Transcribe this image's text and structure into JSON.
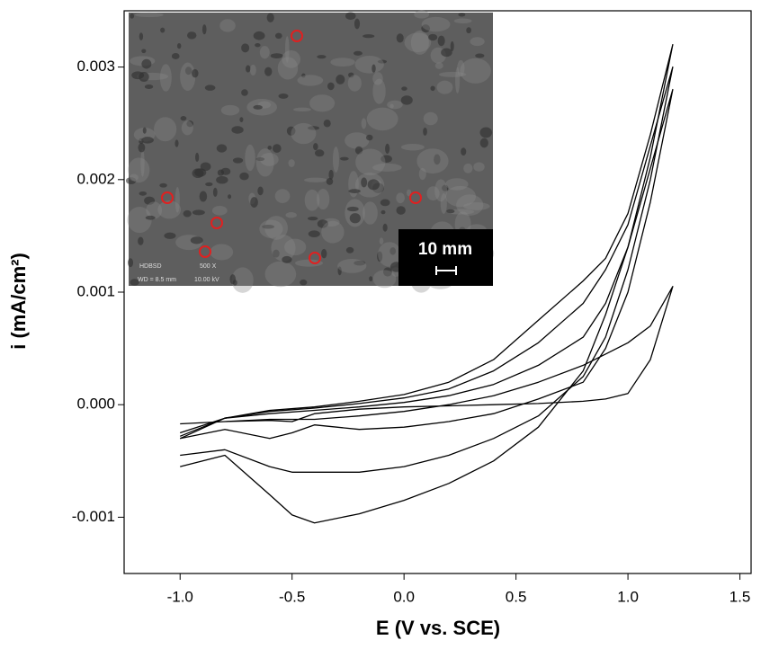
{
  "chart_data": {
    "type": "line",
    "x_label": "E (V vs. SCE)",
    "y_label": "i (mA/cm²)",
    "xlim": [
      -1.25,
      1.55
    ],
    "ylim": [
      -0.0015,
      0.0035
    ],
    "xticks": [
      {
        "value": -1,
        "label": "-1.0"
      },
      -0.5,
      {
        "value": 0,
        "label": "0.0"
      },
      0.5,
      {
        "value": 1,
        "label": "1.0"
      },
      1.5
    ],
    "yticks": [
      {
        "value": -0.001,
        "label": "-0.001"
      },
      {
        "value": 0,
        "label": "0.000"
      },
      0.001,
      0.002,
      0.003
    ],
    "series": [
      {
        "color": "#000000",
        "x": [
          -1,
          -0.8,
          -0.6,
          -0.4,
          -0.2,
          0,
          0.2,
          0.4,
          0.6,
          0.8,
          0.9,
          1,
          1.1,
          1.2,
          1.1,
          1,
          0.9,
          0.8,
          0.6,
          0.4,
          0.2,
          0,
          -0.2,
          -0.4,
          -0.5,
          -0.6,
          -0.8,
          -1
        ],
        "values": [
          -0.00017,
          -0.00015,
          -0.00013,
          -0.00013,
          -0.0001,
          -6e-05,
          0,
          8e-05,
          0.0002,
          0.00035,
          0.00045,
          0.00055,
          0.0007,
          0.00105,
          0.0004,
          0.0001,
          5e-05,
          3e-05,
          1e-05,
          0,
          -1e-05,
          -2e-05,
          -4e-05,
          -8e-05,
          -0.00015,
          -0.00014,
          -0.00015,
          -0.00017
        ]
      },
      {
        "color": "#000000",
        "x": [
          -1,
          -0.8,
          -0.6,
          -0.4,
          -0.2,
          0,
          0.2,
          0.4,
          0.6,
          0.8,
          0.9,
          1,
          1.1,
          1.2,
          1.1,
          1,
          0.9,
          0.8,
          0.6,
          0.4,
          0.2,
          0,
          -0.2,
          -0.4,
          -0.5,
          -0.6,
          -0.8,
          -1
        ],
        "values": [
          -0.00025,
          -0.00012,
          -8e-05,
          -5e-05,
          -2e-05,
          2e-05,
          8e-05,
          0.00018,
          0.00035,
          0.0006,
          0.0009,
          0.0014,
          0.0021,
          0.0028,
          0.0018,
          0.001,
          0.0005,
          0.0002,
          5e-05,
          -8e-05,
          -0.00015,
          -0.0002,
          -0.00022,
          -0.00018,
          -0.00025,
          -0.0003,
          -0.00022,
          -0.0003
        ]
      },
      {
        "color": "#000000",
        "x": [
          -1,
          -0.8,
          -0.6,
          -0.4,
          -0.2,
          0,
          0.2,
          0.4,
          0.6,
          0.8,
          0.9,
          1,
          1.1,
          1.2,
          1.1,
          1,
          0.9,
          0.8,
          0.6,
          0.4,
          0.2,
          0,
          -0.2,
          -0.4,
          -0.5,
          -0.6,
          -0.8,
          -1
        ],
        "values": [
          -0.00028,
          -0.00012,
          -6e-05,
          -3e-05,
          1e-05,
          6e-05,
          0.00014,
          0.0003,
          0.00055,
          0.0009,
          0.0012,
          0.0016,
          0.0023,
          0.003,
          0.002,
          0.0012,
          0.0006,
          0.00025,
          -0.0001,
          -0.0003,
          -0.00045,
          -0.00055,
          -0.0006,
          -0.0006,
          -0.0006,
          -0.00055,
          -0.0004,
          -0.00045
        ]
      },
      {
        "color": "#000000",
        "x": [
          -1,
          -0.8,
          -0.6,
          -0.4,
          -0.2,
          0,
          0.2,
          0.4,
          0.6,
          0.8,
          0.9,
          1,
          1.1,
          1.2,
          1.1,
          1,
          0.9,
          0.8,
          0.6,
          0.4,
          0.2,
          0,
          -0.2,
          -0.4,
          -0.5,
          -0.6,
          -0.8,
          -1
        ],
        "values": [
          -0.0003,
          -0.00012,
          -5e-05,
          -2e-05,
          3e-05,
          9e-05,
          0.0002,
          0.0004,
          0.00075,
          0.0011,
          0.0013,
          0.0017,
          0.0024,
          0.0032,
          0.0022,
          0.0014,
          0.0008,
          0.0003,
          -0.0002,
          -0.0005,
          -0.0007,
          -0.00085,
          -0.00097,
          -0.00105,
          -0.00098,
          -0.0008,
          -0.00045,
          -0.00055
        ]
      }
    ],
    "inset": {
      "scale_bar": "10 mm",
      "texts": [
        "HDBSD",
        "500 X",
        "WD = 8.5 mm",
        "10.00 kV"
      ]
    }
  }
}
